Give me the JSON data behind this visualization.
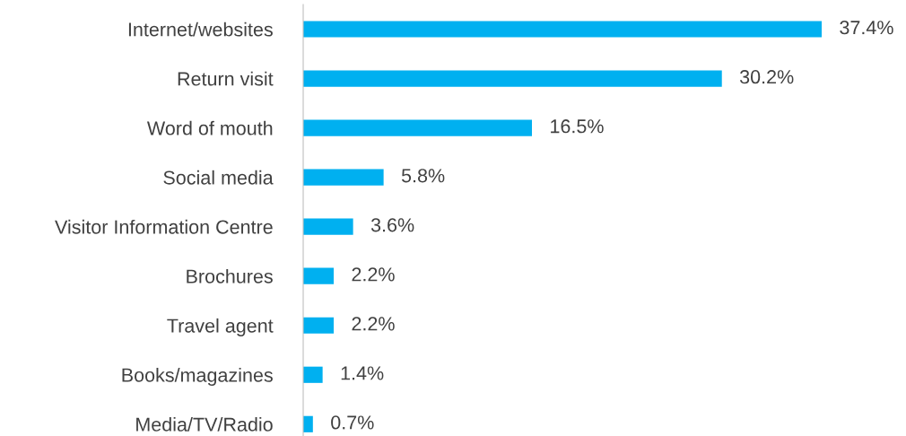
{
  "chart_data": {
    "type": "bar",
    "orientation": "horizontal",
    "categories": [
      "Internet/websites",
      "Return visit",
      "Word of mouth",
      "Social media",
      "Visitor Information Centre",
      "Brochures",
      "Travel agent",
      "Books/magazines",
      "Media/TV/Radio"
    ],
    "values": [
      37.4,
      30.2,
      16.5,
      5.8,
      3.6,
      2.2,
      2.2,
      1.4,
      0.7
    ],
    "value_labels": [
      "37.4%",
      "30.2%",
      "16.5%",
      "5.8%",
      "3.6%",
      "2.2%",
      "2.2%",
      "1.4%",
      "0.7%"
    ],
    "color": "#00b0f0",
    "tick_labels": "y",
    "grid": false,
    "legend": false
  }
}
